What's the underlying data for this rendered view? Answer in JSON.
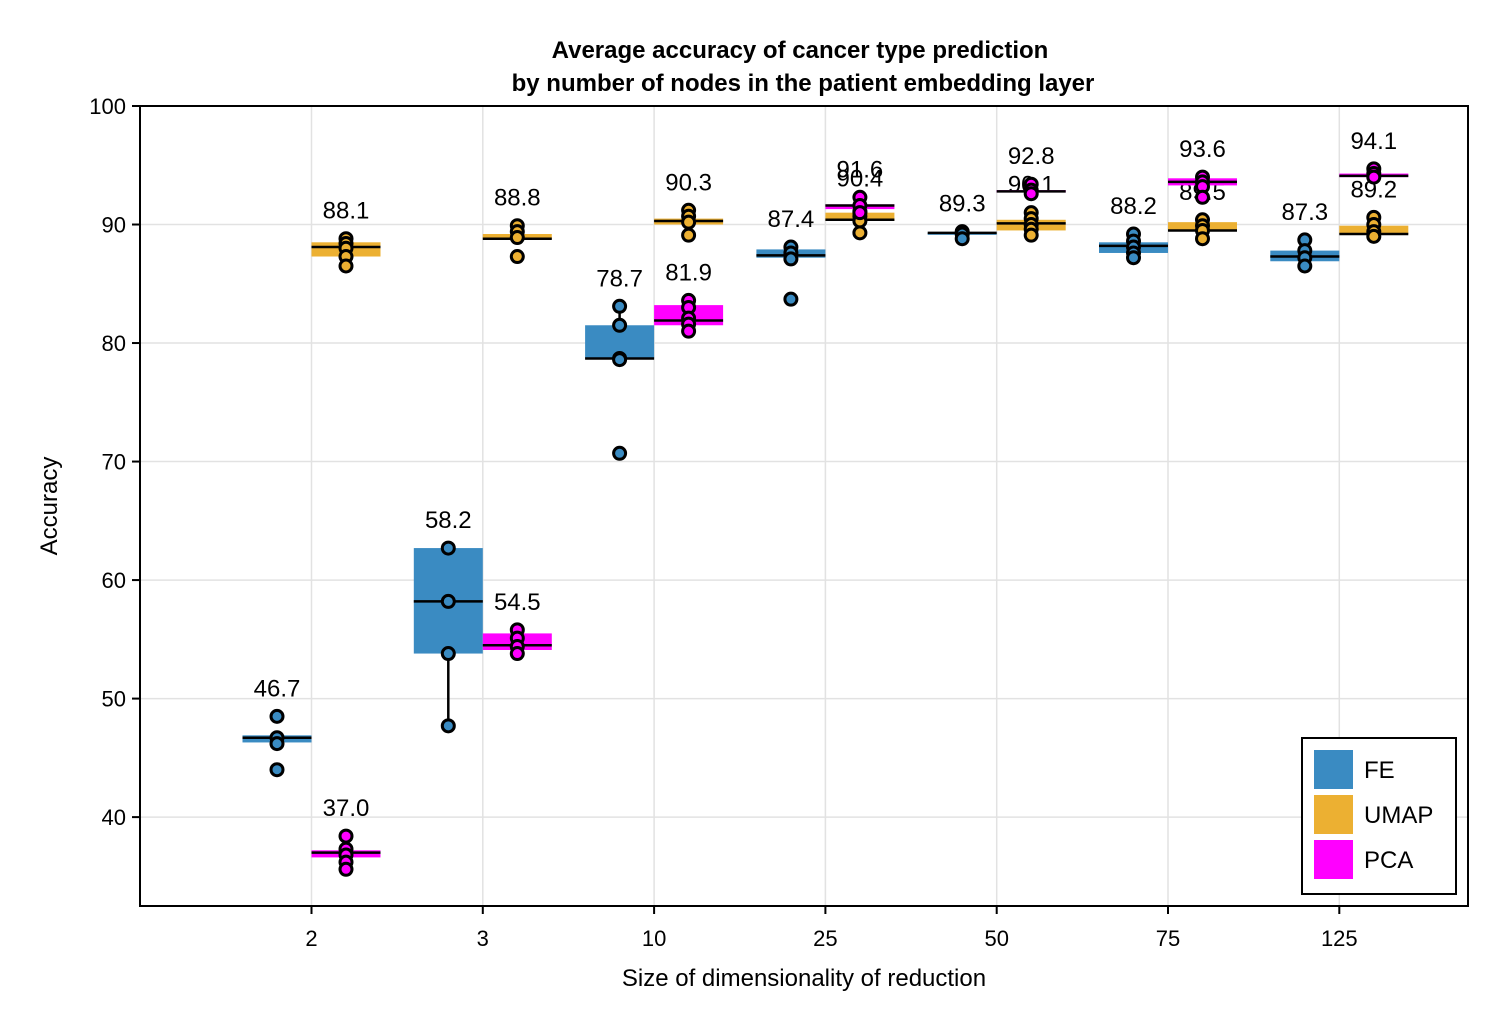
{
  "chart_data": {
    "type": "box",
    "title": "Average accuracy of cancer type prediction",
    "subtitle": "by number of nodes in the patient embedding layer",
    "xlabel": "Size of dimensionality of reduction",
    "ylabel": "Accuracy",
    "categories": [
      "2",
      "3",
      "10",
      "25",
      "50",
      "75",
      "125"
    ],
    "ylim": [
      32.5,
      100
    ],
    "yticks": [
      40,
      50,
      60,
      70,
      80,
      90,
      100
    ],
    "grid": true,
    "legend_position": "bottom-right",
    "series": [
      {
        "name": "FE",
        "color": "#3a8bc2",
        "boxes": [
          {
            "q1": 46.3,
            "median": 46.7,
            "q3": 46.9,
            "whisker_low": 46.3,
            "whisker_high": 46.9,
            "points": [
              48.5,
              46.7,
              46.2,
              44.0
            ],
            "label": "46.7"
          },
          {
            "q1": 53.8,
            "median": 58.2,
            "q3": 62.7,
            "whisker_low": 47.7,
            "whisker_high": 62.7,
            "points": [
              62.7,
              58.2,
              53.8,
              47.7
            ],
            "label": "58.2"
          },
          {
            "q1": 78.7,
            "median": 78.7,
            "q3": 81.5,
            "whisker_low": 78.7,
            "whisker_high": 83.1,
            "points": [
              83.1,
              81.5,
              78.7,
              78.6,
              70.7
            ],
            "label": "78.7"
          },
          {
            "q1": 87.2,
            "median": 87.4,
            "q3": 87.9,
            "whisker_low": 87.2,
            "whisker_high": 87.9,
            "points": [
              88.1,
              87.6,
              87.1,
              83.7
            ],
            "label": "87.4"
          },
          {
            "q1": 89.3,
            "median": 89.3,
            "q3": 89.3,
            "whisker_low": 89.3,
            "whisker_high": 89.3,
            "points": [
              89.4,
              89.2,
              88.8
            ],
            "label": "89.3"
          },
          {
            "q1": 87.6,
            "median": 88.2,
            "q3": 88.5,
            "whisker_low": 87.6,
            "whisker_high": 88.5,
            "points": [
              89.2,
              88.6,
              88.1,
              87.6,
              87.2
            ],
            "label": "88.2"
          },
          {
            "q1": 86.9,
            "median": 87.3,
            "q3": 87.8,
            "whisker_low": 86.9,
            "whisker_high": 87.8,
            "points": [
              88.7,
              87.8,
              87.2,
              86.5
            ],
            "label": "87.3"
          }
        ]
      },
      {
        "name": "UMAP",
        "color": "#ecb032",
        "boxes": [
          {
            "q1": 87.3,
            "median": 88.1,
            "q3": 88.5,
            "whisker_low": 87.3,
            "whisker_high": 88.5,
            "points": [
              88.8,
              88.4,
              88.0,
              87.3,
              86.5
            ],
            "label": "88.1"
          },
          {
            "q1": 88.8,
            "median": 88.8,
            "q3": 89.2,
            "whisker_low": 88.8,
            "whisker_high": 89.2,
            "points": [
              89.9,
              89.4,
              88.9,
              87.3
            ],
            "label": "88.8"
          },
          {
            "q1": 90.0,
            "median": 90.3,
            "q3": 90.5,
            "whisker_low": 90.0,
            "whisker_high": 90.5,
            "points": [
              91.2,
              90.7,
              90.2,
              89.1
            ],
            "label": "90.3"
          },
          {
            "q1": 90.3,
            "median": 90.4,
            "q3": 91.0,
            "whisker_low": 90.3,
            "whisker_high": 91.0,
            "points": [
              91.5,
              91.1,
              90.7,
              90.3,
              89.3
            ],
            "label": "90.4"
          },
          {
            "q1": 89.5,
            "median": 90.1,
            "q3": 90.4,
            "whisker_low": 89.5,
            "whisker_high": 90.4,
            "points": [
              91.0,
              90.5,
              90.0,
              89.6,
              89.1
            ],
            "label": "90.1"
          },
          {
            "q1": 89.5,
            "median": 89.5,
            "q3": 90.2,
            "whisker_low": 89.5,
            "whisker_high": 90.2,
            "points": [
              90.4,
              89.9,
              89.5,
              88.8
            ],
            "label": "89.5"
          },
          {
            "q1": 89.2,
            "median": 89.2,
            "q3": 89.9,
            "whisker_low": 89.2,
            "whisker_high": 89.9,
            "points": [
              90.6,
              90.0,
              89.4,
              89.0
            ],
            "label": "89.2"
          }
        ]
      },
      {
        "name": "PCA",
        "color": "#ff00ff",
        "boxes": [
          {
            "q1": 36.6,
            "median": 37.0,
            "q3": 37.2,
            "whisker_low": 36.6,
            "whisker_high": 37.2,
            "points": [
              38.4,
              37.3,
              36.8,
              36.2,
              35.6
            ],
            "label": "37.0"
          },
          {
            "q1": 54.1,
            "median": 54.5,
            "q3": 55.5,
            "whisker_low": 54.1,
            "whisker_high": 55.5,
            "points": [
              55.8,
              55.1,
              54.4,
              53.8
            ],
            "label": "54.5"
          },
          {
            "q1": 81.5,
            "median": 81.9,
            "q3": 83.2,
            "whisker_low": 81.5,
            "whisker_high": 83.2,
            "points": [
              83.6,
              83.0,
              82.1,
              81.6,
              81.0
            ],
            "label": "81.9"
          },
          {
            "q1": 91.3,
            "median": 91.6,
            "q3": 91.7,
            "whisker_low": 91.3,
            "whisker_high": 91.7,
            "points": [
              92.3,
              91.6,
              91.0
            ],
            "label": "91.6"
          },
          {
            "q1": 92.7,
            "median": 92.8,
            "q3": 92.9,
            "whisker_low": 92.7,
            "whisker_high": 92.9,
            "points": [
              93.4,
              92.9,
              92.6
            ],
            "label": "92.8"
          },
          {
            "q1": 93.3,
            "median": 93.6,
            "q3": 93.9,
            "whisker_low": 93.3,
            "whisker_high": 93.9,
            "points": [
              94.0,
              93.6,
              93.2,
              92.3
            ],
            "label": "93.6"
          },
          {
            "q1": 94.0,
            "median": 94.1,
            "q3": 94.3,
            "whisker_low": 94.0,
            "whisker_high": 94.3,
            "points": [
              94.7,
              94.3,
              94.0
            ],
            "label": "94.1"
          }
        ]
      }
    ]
  }
}
